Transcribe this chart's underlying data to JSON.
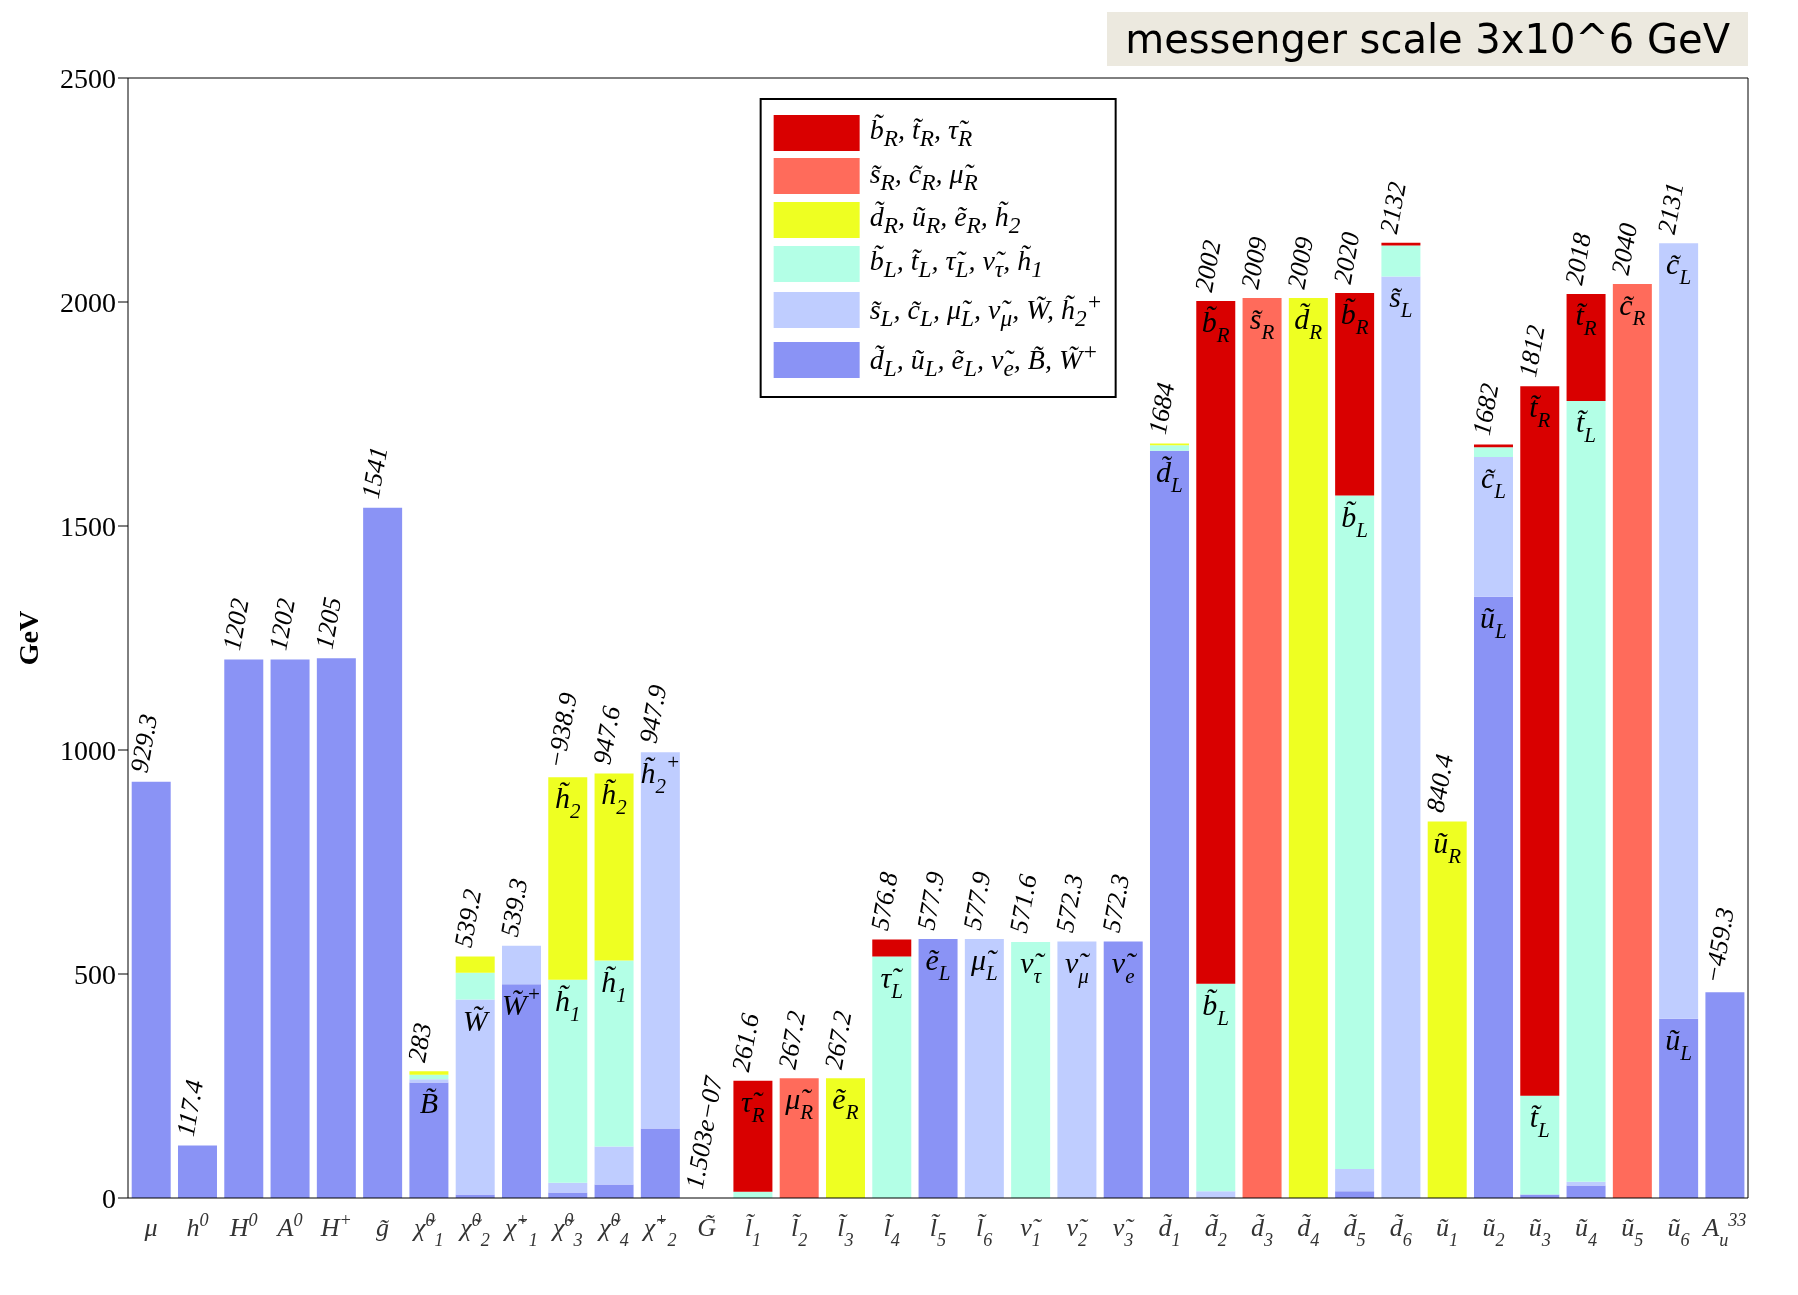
{
  "chart_data": {
    "type": "bar",
    "stacked": true,
    "title": "messenger scale 3x10^6 GeV",
    "ylabel": "GeV",
    "ylim": [
      0,
      2500
    ],
    "yticks": [
      0,
      500,
      1000,
      1500,
      2000,
      2500
    ],
    "grid": false,
    "legend": "top",
    "categories": [
      "μ",
      "h$^{0}$",
      "H$^{0}$",
      "A$^{0}$",
      "H$^{+}$",
      "g̃",
      "χ̃$^{0}$$_{1}$",
      "χ̃$^{0}$$_{2}$",
      "χ̃$^{+}$$_{1}$",
      "χ̃$^{0}$$_{3}$",
      "χ̃$^{0}$$_{4}$",
      "χ̃$^{+}$$_{2}$",
      "G̃",
      "l̃$_{1}$",
      "l̃$_{2}$",
      "l̃$_{3}$",
      "l̃$_{4}$",
      "l̃$_{5}$",
      "l̃$_{6}$",
      "ν̃$_{1}$",
      "ν̃$_{2}$",
      "ν̃$_{3}$",
      "d̃$_{1}$",
      "d̃$_{2}$",
      "d̃$_{3}$",
      "d̃$_{4}$",
      "d̃$_{5}$",
      "d̃$_{6}$",
      "ũ$_{1}$",
      "ũ$_{2}$",
      "ũ$_{3}$",
      "ũ$_{4}$",
      "ũ$_{5}$",
      "ũ$_{6}$",
      "A$_{u}$$^{33}$"
    ],
    "series": [
      {
        "name": "d̃$_{L}$, ũ$_{L}$, ẽ$_{L}$, ν̃$_{e}$, B̃, W̃$^{+}$",
        "color": "#8a93f5",
        "values": [
          929.3,
          117.4,
          1202,
          1202,
          1205,
          1541,
          258,
          8,
          477,
          12,
          30,
          155,
          1.503e-07,
          null,
          null,
          null,
          null,
          577.9,
          null,
          null,
          null,
          572.3,
          1668,
          null,
          null,
          null,
          15,
          null,
          null,
          1342,
          8,
          28,
          null,
          400,
          459.3
        ]
      },
      {
        "name": "s̃$_{L}$, c̃$_{L}$, μ̃$_{L}$, ν̃$_{μ}$, W̃, h̃$_{2}$$^{+}$",
        "color": "#bfcdff",
        "values": [
          null,
          null,
          null,
          null,
          null,
          null,
          7,
          435,
          86,
          22,
          85,
          840,
          null,
          null,
          null,
          null,
          null,
          null,
          577.9,
          null,
          572.3,
          null,
          null,
          15,
          null,
          null,
          50,
          2057,
          null,
          312,
          null,
          8,
          null,
          1731,
          null
        ]
      },
      {
        "name": "b̃$_{L}$, t̃$_{L}$, τ̃$_{L}$, ν̃$_{τ}$, h̃$_{1}$",
        "color": "#b3ffe6",
        "values": [
          null,
          null,
          null,
          null,
          null,
          null,
          10,
          60,
          null,
          453,
          415,
          null,
          null,
          14,
          null,
          null,
          539,
          null,
          null,
          571.6,
          null,
          null,
          12,
          463,
          null,
          null,
          1503,
          69,
          null,
          22,
          220,
          1743,
          null,
          null,
          null
        ]
      },
      {
        "name": "d̃$_{R}$, ũ$_{R}$, ẽ$_{R}$, h̃$_{2}$",
        "color": "#eeff22",
        "values": [
          null,
          null,
          null,
          null,
          null,
          null,
          8,
          36.2,
          null,
          451.9,
          417.6,
          null,
          null,
          null,
          null,
          267.2,
          null,
          null,
          null,
          null,
          null,
          null,
          4,
          null,
          null,
          2009,
          null,
          null,
          840.4,
          null,
          null,
          null,
          null,
          null,
          null
        ]
      },
      {
        "name": "s̃$_{R}$, c̃$_{R}$, μ̃$_{R}$",
        "color": "#ff6b5b",
        "values": [
          null,
          null,
          null,
          null,
          null,
          null,
          null,
          null,
          null,
          null,
          null,
          null,
          null,
          null,
          267.2,
          null,
          null,
          null,
          null,
          null,
          null,
          null,
          null,
          null,
          2009,
          null,
          null,
          null,
          null,
          null,
          null,
          null,
          2040,
          null,
          null
        ]
      },
      {
        "name": "b̃$_{R}$, t̃$_{R}$, τ̃$_{R}$",
        "color": "#d90000",
        "values": [
          null,
          null,
          null,
          null,
          null,
          null,
          null,
          null,
          null,
          null,
          null,
          null,
          null,
          247.6,
          null,
          null,
          37.8,
          null,
          null,
          null,
          null,
          null,
          null,
          1524,
          null,
          null,
          452,
          6,
          null,
          6,
          1584,
          239,
          null,
          null,
          null
        ]
      }
    ],
    "value_labels": [
      "929.3",
      "117.4",
      "1202",
      "1202",
      "1205",
      "1541",
      "283",
      "539.2",
      "539.3",
      "−938.9",
      "947.6",
      "947.9",
      "1.503e−07",
      "261.6",
      "267.2",
      "267.2",
      "576.8",
      "577.9",
      "577.9",
      "571.6",
      "572.3",
      "572.3",
      "1684",
      "2002",
      "2009",
      "2009",
      "2020",
      "2132",
      "840.4",
      "1682",
      "1812",
      "2018",
      "2040",
      "2131",
      "−459.3"
    ],
    "annotations": [
      {
        "text": "B̃",
        "x": "χ̃$^{0}$$_{1}$",
        "y": 258
      },
      {
        "text": "W̃",
        "x": "χ̃$^{0}$$_{2}$",
        "y": 443
      },
      {
        "text": "W̃$^{+}$",
        "x": "χ̃$^{+}$$_{1}$",
        "y": 477
      },
      {
        "text": "h̃$_{2}$",
        "x": "χ̃$^{0}$$_{3}$",
        "y": 938.9
      },
      {
        "text": "h̃$_{1}$",
        "x": "χ̃$^{0}$$_{3}$",
        "y": 487
      },
      {
        "text": "h̃$_{2}$",
        "x": "χ̃$^{0}$$_{4}$",
        "y": 947.6
      },
      {
        "text": "h̃$_{1}$",
        "x": "χ̃$^{0}$$_{4}$",
        "y": 530
      },
      {
        "text": "h̃$_{2}$$^{+}$",
        "x": "χ̃$^{+}$$_{2}$",
        "y": 995
      },
      {
        "text": "τ̃$_{R}$",
        "x": "l̃$_{1}$",
        "y": 261.6
      },
      {
        "text": "μ̃$_{R}$",
        "x": "l̃$_{2}$",
        "y": 267.2
      },
      {
        "text": "ẽ$_{R}$",
        "x": "l̃$_{3}$",
        "y": 267.2
      },
      {
        "text": "τ̃$_{L}$",
        "x": "l̃$_{4}$",
        "y": 539
      },
      {
        "text": "ẽ$_{L}$",
        "x": "l̃$_{5}$",
        "y": 577.9
      },
      {
        "text": "μ̃$_{L}$",
        "x": "l̃$_{6}$",
        "y": 577.9
      },
      {
        "text": "ν̃$_{τ}$",
        "x": "ν̃$_{1}$",
        "y": 571.6
      },
      {
        "text": "ν̃$_{μ}$",
        "x": "ν̃$_{2}$",
        "y": 572.3
      },
      {
        "text": "ν̃$_{e}$",
        "x": "ν̃$_{3}$",
        "y": 572.3
      },
      {
        "text": "d̃$_{L}$",
        "x": "d̃$_{1}$",
        "y": 1668
      },
      {
        "text": "b̃$_{R}$",
        "x": "d̃$_{2}$",
        "y": 2002
      },
      {
        "text": "b̃$_{L}$",
        "x": "d̃$_{2}$",
        "y": 478
      },
      {
        "text": "s̃$_{R}$",
        "x": "d̃$_{3}$",
        "y": 2009
      },
      {
        "text": "d̃$_{R}$",
        "x": "d̃$_{4}$",
        "y": 2009
      },
      {
        "text": "b̃$_{R}$",
        "x": "d̃$_{5}$",
        "y": 2020
      },
      {
        "text": "b̃$_{L}$",
        "x": "d̃$_{5}$",
        "y": 1568
      },
      {
        "text": "s̃$_{L}$",
        "x": "d̃$_{6}$",
        "y": 2057
      },
      {
        "text": "ũ$_{R}$",
        "x": "ũ$_{1}$",
        "y": 840.4
      },
      {
        "text": "c̃$_{L}$",
        "x": "ũ$_{2}$",
        "y": 1654
      },
      {
        "text": "ũ$_{L}$",
        "x": "ũ$_{2}$",
        "y": 1342
      },
      {
        "text": "t̃$_{R}$",
        "x": "ũ$_{3}$",
        "y": 1812
      },
      {
        "text": "t̃$_{L}$",
        "x": "ũ$_{3}$",
        "y": 228
      },
      {
        "text": "t̃$_{R}$",
        "x": "ũ$_{4}$",
        "y": 2018
      },
      {
        "text": "t̃$_{L}$",
        "x": "ũ$_{4}$",
        "y": 1779
      },
      {
        "text": "c̃$_{R}$",
        "x": "ũ$_{5}$",
        "y": 2040
      },
      {
        "text": "c̃$_{L}$",
        "x": "ũ$_{6}$",
        "y": 2131
      },
      {
        "text": "ũ$_{L}$",
        "x": "ũ$_{6}$",
        "y": 400
      }
    ]
  }
}
